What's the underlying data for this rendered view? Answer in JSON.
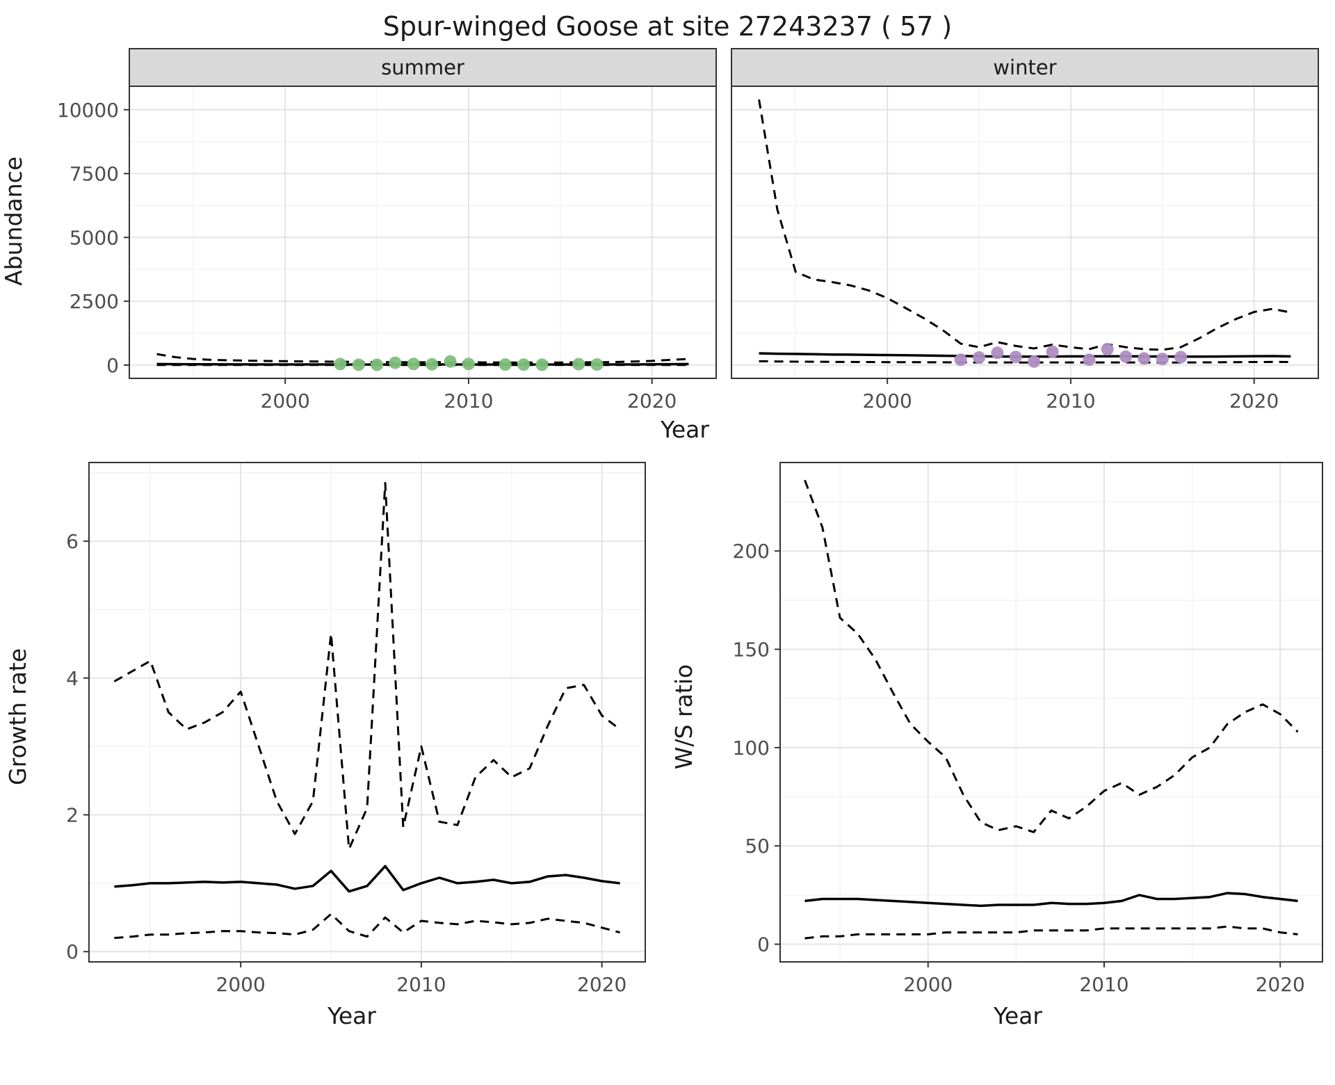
{
  "title": "Spur-winged Goose at site 27243237 ( 57 )",
  "chart_data": {
    "type": "line",
    "grid": true,
    "legend": "none",
    "style": {
      "panel_bg": "#ffffff",
      "grid_major": "#e4e4e4",
      "grid_minor": "#f2f2f2",
      "border_color": "#333333",
      "border_width": 2,
      "line_color": "#000000",
      "median_width": 3.5,
      "ci_width": 3,
      "dash_pattern": "13 9",
      "point_radius": 9,
      "strip_bg": "#d9d9d9",
      "strip_text_color": "#1a1a1a",
      "strip_font": 29,
      "tick_color": "#333333",
      "tick_font": 28,
      "tick_label_color": "#4d4d4d"
    },
    "figures": {
      "abundance": {
        "ylabel": "Abundance",
        "xlabel": "Year",
        "xlim": [
          1991.5,
          2023.5
        ],
        "ylim": [
          -520,
          10920
        ],
        "xticks": [
          2000,
          2010,
          2020
        ],
        "yticks": [
          0,
          2500,
          5000,
          7500,
          10000
        ],
        "xminor": [
          1995,
          2005,
          2015
        ],
        "yminor": [
          1250,
          3750,
          6250,
          8750
        ],
        "facets": [
          {
            "label": "summer",
            "point_color": "#7fbf7b",
            "years": [
              1993,
              1994,
              1995,
              1996,
              1997,
              1998,
              1999,
              2000,
              2001,
              2002,
              2003,
              2004,
              2005,
              2006,
              2007,
              2008,
              2009,
              2010,
              2011,
              2012,
              2013,
              2014,
              2015,
              2016,
              2017,
              2018,
              2019,
              2020,
              2021,
              2022
            ],
            "median": [
              40,
              35,
              32,
              30,
              28,
              27,
              26,
              25,
              25,
              24,
              24,
              23,
              23,
              23,
              22,
              22,
              24,
              23,
              22,
              22,
              22,
              22,
              21,
              21,
              22,
              24,
              26,
              30,
              36,
              42
            ],
            "upper": [
              430,
              310,
              240,
              205,
              185,
              172,
              162,
              152,
              145,
              138,
              130,
              122,
              118,
              115,
              110,
              108,
              115,
              108,
              104,
              102,
              100,
              100,
              100,
              105,
              110,
              120,
              140,
              165,
              205,
              240
            ],
            "lower": [
              2,
              2,
              2,
              2,
              2,
              2,
              2,
              2,
              2,
              2,
              2,
              2,
              2,
              2,
              2,
              2,
              2,
              2,
              2,
              2,
              2,
              2,
              2,
              2,
              2,
              2,
              2,
              2,
              2,
              2
            ],
            "points": {
              "x": [
                2003,
                2004,
                2005,
                2006,
                2007,
                2008,
                2009,
                2010,
                2012,
                2013,
                2014,
                2016,
                2017
              ],
              "y": [
                40,
                15,
                12,
                90,
                45,
                30,
                140,
                45,
                20,
                18,
                15,
                35,
                22
              ]
            }
          },
          {
            "label": "winter",
            "point_color": "#af8dc3",
            "years": [
              1993,
              1994,
              1995,
              1996,
              1997,
              1998,
              1999,
              2000,
              2001,
              2002,
              2003,
              2004,
              2005,
              2006,
              2007,
              2008,
              2009,
              2010,
              2011,
              2012,
              2013,
              2014,
              2015,
              2016,
              2017,
              2018,
              2019,
              2020,
              2021,
              2022
            ],
            "median": [
              460,
              445,
              435,
              425,
              415,
              408,
              400,
              392,
              385,
              375,
              365,
              355,
              345,
              338,
              332,
              330,
              334,
              340,
              342,
              346,
              346,
              342,
              336,
              331,
              331,
              336,
              342,
              348,
              352,
              342
            ],
            "upper": [
              10400,
              6100,
              3650,
              3350,
              3250,
              3120,
              2920,
              2620,
              2230,
              1830,
              1380,
              840,
              700,
              900,
              750,
              650,
              800,
              700,
              620,
              820,
              700,
              620,
              600,
              700,
              1050,
              1450,
              1800,
              2080,
              2200,
              2060
            ],
            "lower": [
              150,
              142,
              135,
              130,
              126,
              122,
              120,
              116,
              114,
              111,
              109,
              106,
              104,
              103,
              101,
              100,
              104,
              104,
              101,
              104,
              104,
              101,
              100,
              100,
              104,
              109,
              114,
              119,
              123,
              119
            ],
            "points": {
              "x": [
                2004,
                2005,
                2006,
                2007,
                2008,
                2009,
                2011,
                2012,
                2013,
                2014,
                2015,
                2016
              ],
              "y": [
                210,
                300,
                480,
                320,
                140,
                520,
                210,
                620,
                330,
                260,
                240,
                310
              ]
            }
          }
        ]
      },
      "growth": {
        "ylabel": "Growth rate",
        "xlabel": "Year",
        "xlim": [
          1991.6,
          2022.4
        ],
        "ylim": [
          -0.15,
          7.15
        ],
        "xticks": [
          2000,
          2010,
          2020
        ],
        "yticks": [
          0,
          2,
          4,
          6
        ],
        "xminor": [
          1995,
          2005,
          2015
        ],
        "yminor": [
          1,
          3,
          5,
          7
        ],
        "years": [
          1993,
          1994,
          1995,
          1996,
          1997,
          1998,
          1999,
          2000,
          2001,
          2002,
          2003,
          2004,
          2005,
          2006,
          2007,
          2008,
          2009,
          2010,
          2011,
          2012,
          2013,
          2014,
          2015,
          2016,
          2017,
          2018,
          2019,
          2020,
          2021
        ],
        "median": [
          0.95,
          0.97,
          1.0,
          1.0,
          1.01,
          1.02,
          1.01,
          1.02,
          1.0,
          0.98,
          0.92,
          0.96,
          1.18,
          0.88,
          0.96,
          1.25,
          0.9,
          1.0,
          1.08,
          1.0,
          1.02,
          1.05,
          1.0,
          1.02,
          1.1,
          1.12,
          1.08,
          1.03,
          1.0
        ],
        "upper": [
          3.95,
          4.1,
          4.25,
          3.5,
          3.25,
          3.35,
          3.5,
          3.8,
          3.0,
          2.2,
          1.72,
          2.2,
          4.65,
          1.5,
          2.1,
          6.85,
          1.82,
          3.0,
          1.9,
          1.85,
          2.55,
          2.8,
          2.55,
          2.68,
          3.3,
          3.85,
          3.9,
          3.45,
          3.25
        ],
        "lower": [
          0.2,
          0.22,
          0.25,
          0.25,
          0.27,
          0.28,
          0.3,
          0.3,
          0.28,
          0.27,
          0.25,
          0.32,
          0.55,
          0.3,
          0.22,
          0.5,
          0.28,
          0.45,
          0.42,
          0.4,
          0.45,
          0.43,
          0.4,
          0.42,
          0.48,
          0.45,
          0.42,
          0.35,
          0.28
        ]
      },
      "ratio": {
        "ylabel": "W/S ratio",
        "xlabel": "Year",
        "xlim": [
          1991.6,
          2022.4
        ],
        "ylim": [
          -9,
          245
        ],
        "xticks": [
          2000,
          2010,
          2020
        ],
        "yticks": [
          0,
          50,
          100,
          150,
          200
        ],
        "xminor": [
          1995,
          2005,
          2015
        ],
        "yminor": [
          25,
          75,
          125,
          175,
          225
        ],
        "years": [
          1993,
          1994,
          1995,
          1996,
          1997,
          1998,
          1999,
          2000,
          2001,
          2002,
          2003,
          2004,
          2005,
          2006,
          2007,
          2008,
          2009,
          2010,
          2011,
          2012,
          2013,
          2014,
          2015,
          2016,
          2017,
          2018,
          2019,
          2020,
          2021
        ],
        "median": [
          22,
          23,
          23,
          23,
          22.5,
          22,
          21.5,
          21,
          20.5,
          20,
          19.5,
          20,
          20,
          20,
          21,
          20.5,
          20.5,
          21,
          22,
          25,
          23,
          23,
          23.5,
          24,
          26,
          25.5,
          24,
          23,
          22
        ],
        "upper": [
          236,
          212,
          166,
          158,
          145,
          128,
          112,
          103,
          95,
          76,
          62,
          58,
          60,
          57,
          68,
          64,
          70,
          78,
          82,
          76,
          80,
          86,
          95,
          100,
          112,
          118,
          122,
          117,
          108
        ],
        "lower": [
          3,
          4,
          4,
          5,
          5,
          5,
          5,
          5,
          6,
          6,
          6,
          6,
          6,
          7,
          7,
          7,
          7,
          8,
          8,
          8,
          8,
          8,
          8,
          8,
          9,
          8,
          8,
          6,
          5
        ]
      }
    }
  }
}
